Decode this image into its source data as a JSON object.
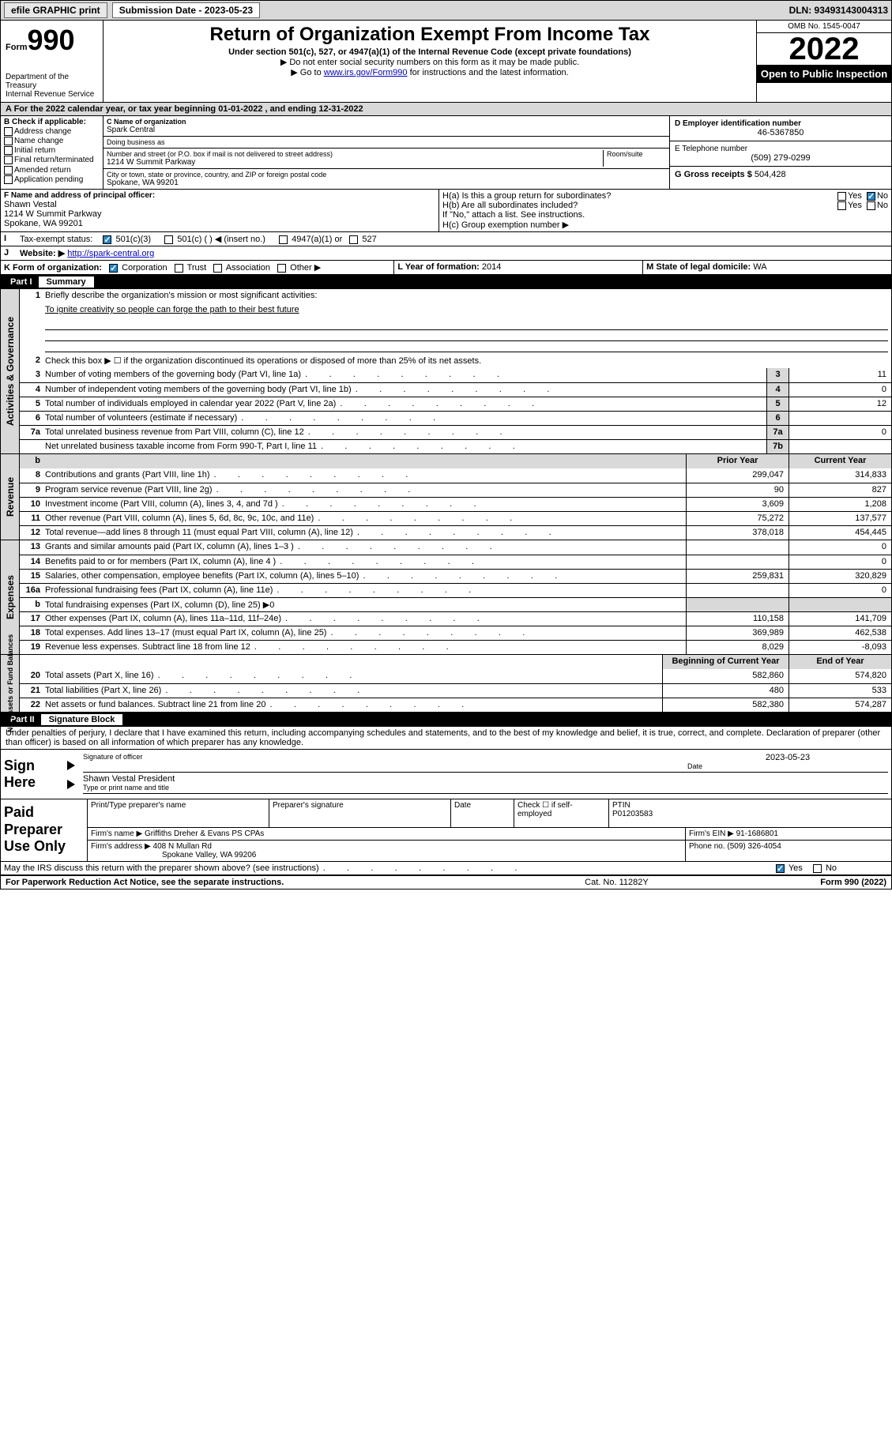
{
  "topbar": {
    "efile": "efile GRAPHIC print",
    "subdate_lbl": "Submission Date - ",
    "subdate": "2023-05-23",
    "dln": "DLN: 93493143004313"
  },
  "header": {
    "form_prefix": "Form",
    "form_number": "990",
    "title": "Return of Organization Exempt From Income Tax",
    "subtitle": "Under section 501(c), 527, or 4947(a)(1) of the Internal Revenue Code (except private foundations)",
    "note1": "▶ Do not enter social security numbers on this form as it may be made public.",
    "note2_pre": "▶ Go to ",
    "note2_link": "www.irs.gov/Form990",
    "note2_post": " for instructions and the latest information.",
    "dept": "Department of the Treasury\nInternal Revenue Service",
    "omb": "OMB No. 1545-0047",
    "year": "2022",
    "open": "Open to Public Inspection"
  },
  "period": "A For the 2022 calendar year, or tax year beginning 01-01-2022     , and ending 12-31-2022",
  "section_b": {
    "hdr": "B Check if applicable:",
    "opts": [
      "Address change",
      "Name change",
      "Initial return",
      "Final return/terminated",
      "Amended return",
      "Application pending"
    ]
  },
  "section_c": {
    "lbl_name": "C Name of organization",
    "name": "Spark Central",
    "dba_lbl": "Doing business as",
    "dba": "",
    "addr_lbl": "Number and street (or P.O. box if mail is not delivered to street address)",
    "room_lbl": "Room/suite",
    "addr": "1214 W Summit Parkway",
    "city_lbl": "City or town, state or province, country, and ZIP or foreign postal code",
    "city": "Spokane, WA  99201"
  },
  "section_d": {
    "lbl": "D Employer identification number",
    "val": "46-5367850"
  },
  "section_e": {
    "lbl": "E Telephone number",
    "val": "(509) 279-0299"
  },
  "section_g": {
    "lbl": "G Gross receipts $",
    "val": "504,428"
  },
  "section_f": {
    "lbl": "F  Name and address of principal officer:",
    "name": "Shawn Vestal",
    "addr1": "1214 W Summit Parkway",
    "addr2": "Spokane, WA  99201"
  },
  "section_h": {
    "ha": "H(a)  Is this a group return for subordinates?",
    "hb": "H(b)  Are all subordinates included?",
    "hb_note": "If \"No,\" attach a list. See instructions.",
    "hc": "H(c)  Group exemption number ▶",
    "yes": "Yes",
    "no": "No"
  },
  "section_i": {
    "lbl": "Tax-exempt status:",
    "opts": [
      "501(c)(3)",
      "501(c) (  ) ◀ (insert no.)",
      "4947(a)(1) or",
      "527"
    ]
  },
  "section_j": {
    "lbl": "Website: ▶",
    "val": "http://spark-central.org"
  },
  "section_k": {
    "lbl": "K Form of organization:",
    "opts": [
      "Corporation",
      "Trust",
      "Association",
      "Other ▶"
    ]
  },
  "section_l": {
    "lbl": "L Year of formation:",
    "val": "2014"
  },
  "section_m": {
    "lbl": "M State of legal domicile:",
    "val": "WA"
  },
  "part1": {
    "bar": "Part I",
    "title": "Summary",
    "l1a": "Briefly describe the organization's mission or most significant activities:",
    "l1b": "To ignite creativity so people can forge the path to their best future",
    "l2": "Check this box ▶ ☐  if the organization discontinued its operations or disposed of more than 25% of its net assets.",
    "rows_ag": [
      {
        "n": "3",
        "t": "Number of voting members of the governing body (Part VI, line 1a)",
        "box": "3",
        "v": "11"
      },
      {
        "n": "4",
        "t": "Number of independent voting members of the governing body (Part VI, line 1b)",
        "box": "4",
        "v": "0"
      },
      {
        "n": "5",
        "t": "Total number of individuals employed in calendar year 2022 (Part V, line 2a)",
        "box": "5",
        "v": "12"
      },
      {
        "n": "6",
        "t": "Total number of volunteers (estimate if necessary)",
        "box": "6",
        "v": ""
      },
      {
        "n": "7a",
        "t": "Total unrelated business revenue from Part VIII, column (C), line 12",
        "box": "7a",
        "v": "0"
      },
      {
        "n": "",
        "t": "Net unrelated business taxable income from Form 990-T, Part I, line 11",
        "box": "7b",
        "v": ""
      }
    ],
    "col_prior": "Prior Year",
    "col_curr": "Current Year",
    "rows_rev": [
      {
        "n": "8",
        "t": "Contributions and grants (Part VIII, line 1h)",
        "p": "299,047",
        "c": "314,833"
      },
      {
        "n": "9",
        "t": "Program service revenue (Part VIII, line 2g)",
        "p": "90",
        "c": "827"
      },
      {
        "n": "10",
        "t": "Investment income (Part VIII, column (A), lines 3, 4, and 7d )",
        "p": "3,609",
        "c": "1,208"
      },
      {
        "n": "11",
        "t": "Other revenue (Part VIII, column (A), lines 5, 6d, 8c, 9c, 10c, and 11e)",
        "p": "75,272",
        "c": "137,577"
      },
      {
        "n": "12",
        "t": "Total revenue—add lines 8 through 11 (must equal Part VIII, column (A), line 12)",
        "p": "378,018",
        "c": "454,445"
      }
    ],
    "rows_exp": [
      {
        "n": "13",
        "t": "Grants and similar amounts paid (Part IX, column (A), lines 1–3 )",
        "p": "",
        "c": "0"
      },
      {
        "n": "14",
        "t": "Benefits paid to or for members (Part IX, column (A), line 4 )",
        "p": "",
        "c": "0"
      },
      {
        "n": "15",
        "t": "Salaries, other compensation, employee benefits (Part IX, column (A), lines 5–10)",
        "p": "259,831",
        "c": "320,829"
      },
      {
        "n": "16a",
        "t": "Professional fundraising fees (Part IX, column (A), line 11e)",
        "p": "",
        "c": "0"
      },
      {
        "n": "b",
        "t": "Total fundraising expenses (Part IX, column (D), line 25) ▶0",
        "p": "—",
        "c": "—"
      },
      {
        "n": "17",
        "t": "Other expenses (Part IX, column (A), lines 11a–11d, 11f–24e)",
        "p": "110,158",
        "c": "141,709"
      },
      {
        "n": "18",
        "t": "Total expenses. Add lines 13–17 (must equal Part IX, column (A), line 25)",
        "p": "369,989",
        "c": "462,538"
      },
      {
        "n": "19",
        "t": "Revenue less expenses. Subtract line 18 from line 12",
        "p": "8,029",
        "c": "-8,093"
      }
    ],
    "col_beg": "Beginning of Current Year",
    "col_end": "End of Year",
    "rows_net": [
      {
        "n": "20",
        "t": "Total assets (Part X, line 16)",
        "p": "582,860",
        "c": "574,820"
      },
      {
        "n": "21",
        "t": "Total liabilities (Part X, line 26)",
        "p": "480",
        "c": "533"
      },
      {
        "n": "22",
        "t": "Net assets or fund balances. Subtract line 21 from line 20",
        "p": "582,380",
        "c": "574,287"
      }
    ],
    "tab_ag": "Activities & Governance",
    "tab_rev": "Revenue",
    "tab_exp": "Expenses",
    "tab_net": "Net Assets or Fund Balances"
  },
  "part2": {
    "bar": "Part II",
    "title": "Signature Block",
    "decl": "Under penalties of perjury, I declare that I have examined this return, including accompanying schedules and statements, and to the best of my knowledge and belief, it is true, correct, and complete. Declaration of preparer (other than officer) is based on all information of which preparer has any knowledge.",
    "sign_here": "Sign Here",
    "sig_officer": "Signature of officer",
    "date_lbl": "Date",
    "date_val": "2023-05-23",
    "name_title": "Shawn Vestal  President",
    "name_title_lbl": "Type or print name and title",
    "paid_lbl": "Paid Preparer Use Only",
    "prep_name_lbl": "Print/Type preparer's name",
    "prep_sig_lbl": "Preparer's signature",
    "check_lbl": "Check ☐ if self-employed",
    "ptin_lbl": "PTIN",
    "ptin": "P01203583",
    "firm_name_lbl": "Firm's name   ▶",
    "firm_name": "Griffiths Dreher & Evans PS CPAs",
    "firm_ein_lbl": "Firm's EIN ▶",
    "firm_ein": "91-1686801",
    "firm_addr_lbl": "Firm's address ▶",
    "firm_addr1": "408 N Mullan Rd",
    "firm_addr2": "Spokane Valley, WA  99206",
    "phone_lbl": "Phone no.",
    "phone": "(509) 326-4054",
    "discuss": "May the IRS discuss this return with the preparer shown above? (see instructions)",
    "footer_l": "For Paperwork Reduction Act Notice, see the separate instructions.",
    "footer_c": "Cat. No. 11282Y",
    "footer_r": "Form 990 (2022)"
  }
}
